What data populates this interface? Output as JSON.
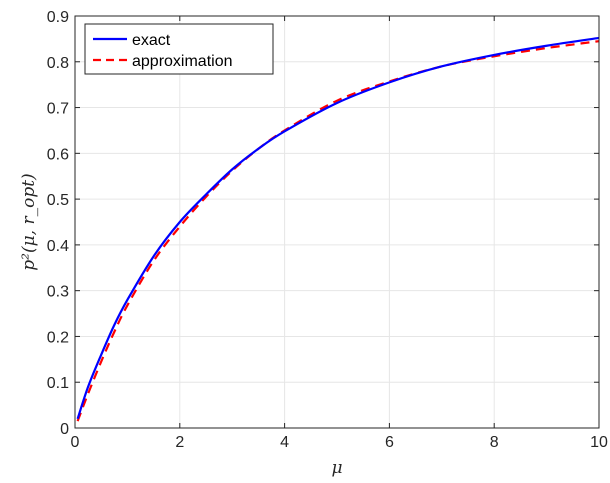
{
  "chart_data": {
    "type": "line",
    "xlabel": "μ",
    "ylabel": "p²(μ, r_opt)",
    "xlim": [
      0,
      10
    ],
    "ylim": [
      0,
      0.9
    ],
    "xticks": [
      0,
      2,
      4,
      6,
      8,
      10
    ],
    "xtick_labels": [
      "0",
      "2",
      "4",
      "6",
      "8",
      "10"
    ],
    "yticks": [
      0,
      0.1,
      0.2,
      0.3,
      0.4,
      0.5,
      0.6,
      0.7,
      0.8,
      0.9
    ],
    "ytick_labels": [
      "0",
      "0.1",
      "0.2",
      "0.3",
      "0.4",
      "0.5",
      "0.6",
      "0.7",
      "0.8",
      "0.9"
    ],
    "grid": true,
    "legend_position": "top-left",
    "series": [
      {
        "name": "exact",
        "color": "#0000ff",
        "style": "solid",
        "x": [
          0.05,
          0.25,
          0.5,
          0.75,
          1,
          1.5,
          2,
          2.5,
          3,
          3.5,
          4,
          5,
          6,
          7,
          8,
          9,
          10
        ],
        "y": [
          0.02,
          0.09,
          0.16,
          0.225,
          0.28,
          0.375,
          0.45,
          0.51,
          0.565,
          0.61,
          0.648,
          0.71,
          0.755,
          0.79,
          0.815,
          0.835,
          0.852
        ]
      },
      {
        "name": "approximation",
        "color": "#ff0000",
        "style": "dashed",
        "x": [
          0.05,
          0.25,
          0.5,
          0.75,
          1,
          1.5,
          2,
          2.5,
          3,
          3.5,
          4,
          5,
          6,
          7,
          8,
          9,
          10
        ],
        "y": [
          0.015,
          0.075,
          0.145,
          0.21,
          0.268,
          0.365,
          0.44,
          0.505,
          0.562,
          0.61,
          0.65,
          0.715,
          0.757,
          0.79,
          0.812,
          0.83,
          0.845
        ]
      }
    ]
  }
}
